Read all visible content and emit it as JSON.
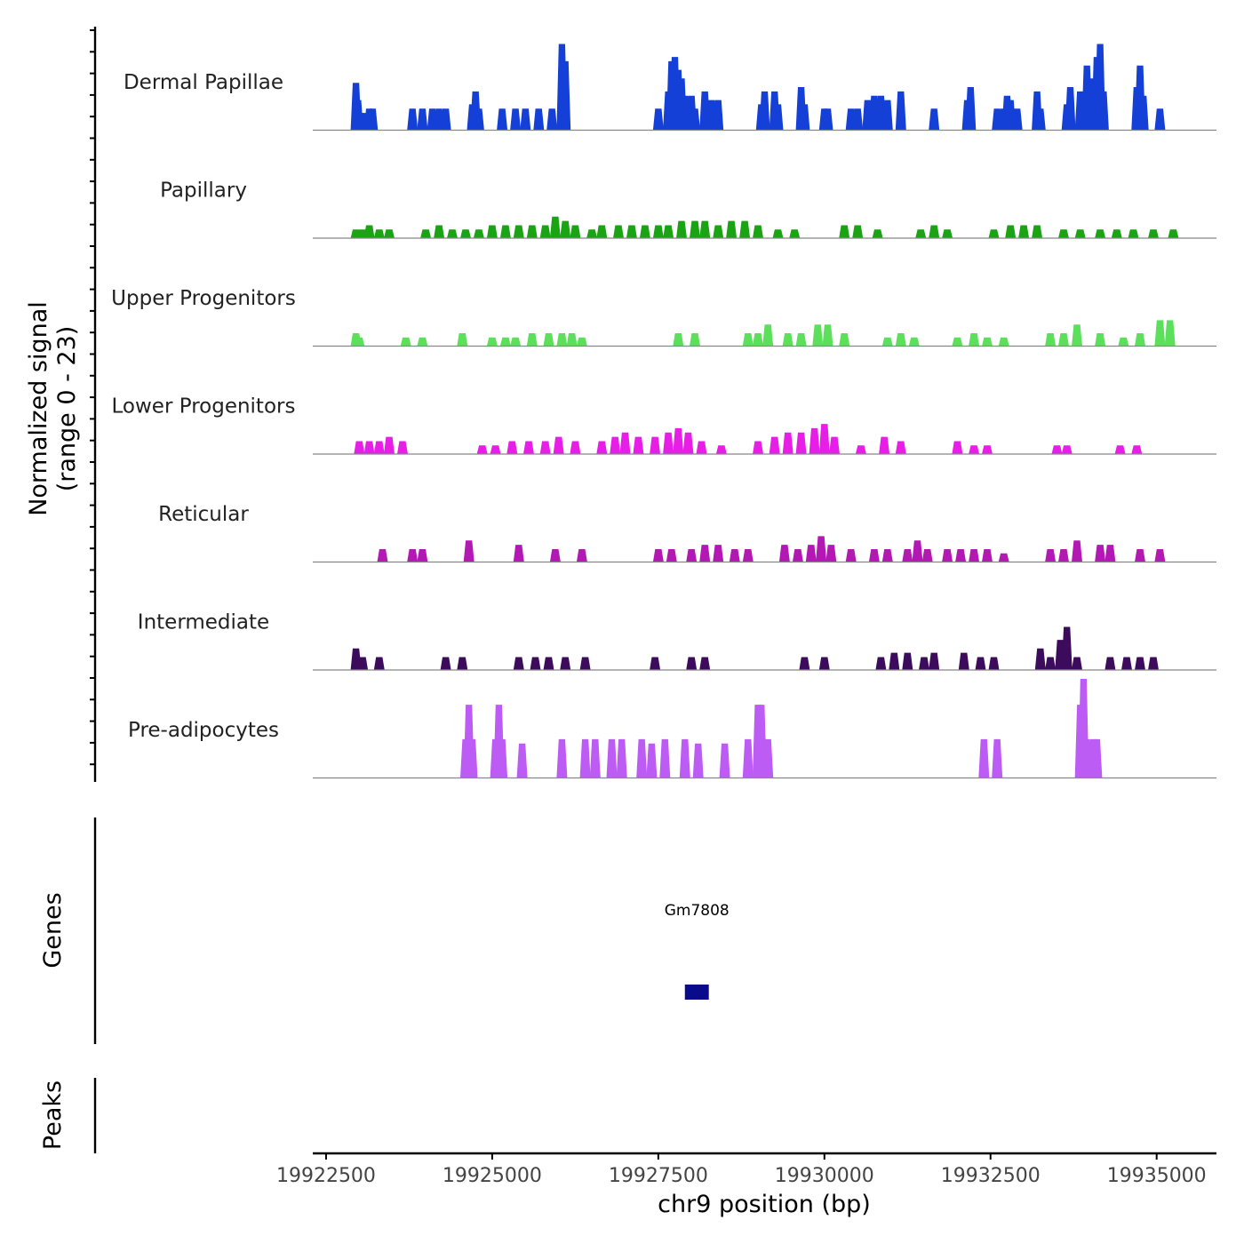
{
  "chart_data": {
    "type": "area",
    "title": "",
    "xlabel": "chr9 position (bp)",
    "ylabel_line1": "Normalized signal",
    "ylabel_line2": "(range 0 - 23)",
    "xlim": [
      19922300,
      19935900
    ],
    "ylim": [
      0,
      23
    ],
    "xticks": [
      19922500,
      19925000,
      19927500,
      19930000,
      19932500,
      19935000
    ],
    "xtick_labels": [
      "19922500",
      "19925000",
      "19927500",
      "19930000",
      "19932500",
      "19935000"
    ],
    "series": [
      {
        "name": "Dermal Papillae",
        "color": "#1540d8",
        "points": [
          [
            19922950,
            11
          ],
          [
            19922980,
            7
          ],
          [
            19923020,
            4
          ],
          [
            19923060,
            4
          ],
          [
            19923150,
            5
          ],
          [
            19923200,
            5
          ],
          [
            19923800,
            5
          ],
          [
            19923950,
            5
          ],
          [
            19924100,
            5
          ],
          [
            19924200,
            5
          ],
          [
            19924300,
            5
          ],
          [
            19924700,
            6
          ],
          [
            19924750,
            9
          ],
          [
            19924800,
            5
          ],
          [
            19925150,
            5
          ],
          [
            19925350,
            5
          ],
          [
            19925500,
            5
          ],
          [
            19925700,
            5
          ],
          [
            19925900,
            5
          ],
          [
            19926050,
            20
          ],
          [
            19926100,
            16
          ],
          [
            19927500,
            5
          ],
          [
            19927650,
            9
          ],
          [
            19927700,
            16
          ],
          [
            19927750,
            17
          ],
          [
            19927800,
            14
          ],
          [
            19927850,
            12
          ],
          [
            19927900,
            8
          ],
          [
            19928000,
            8
          ],
          [
            19928050,
            5
          ],
          [
            19928200,
            9
          ],
          [
            19928300,
            7
          ],
          [
            19928400,
            7
          ],
          [
            19929050,
            6
          ],
          [
            19929100,
            9
          ],
          [
            19929250,
            9
          ],
          [
            19929300,
            6
          ],
          [
            19929650,
            10
          ],
          [
            19929700,
            6
          ],
          [
            19930000,
            5
          ],
          [
            19930050,
            5
          ],
          [
            19930400,
            5
          ],
          [
            19930500,
            5
          ],
          [
            19930650,
            7
          ],
          [
            19930750,
            8
          ],
          [
            19930850,
            8
          ],
          [
            19930950,
            7
          ],
          [
            19931150,
            9
          ],
          [
            19931650,
            5
          ],
          [
            19932150,
            7
          ],
          [
            19932200,
            10
          ],
          [
            19932600,
            5
          ],
          [
            19932700,
            5
          ],
          [
            19932750,
            8
          ],
          [
            19932800,
            7
          ],
          [
            19932900,
            5
          ],
          [
            19933200,
            9
          ],
          [
            19933250,
            5
          ],
          [
            19933650,
            6
          ],
          [
            19933700,
            10
          ],
          [
            19933850,
            9
          ],
          [
            19933950,
            15
          ],
          [
            19934050,
            12
          ],
          [
            19934100,
            17
          ],
          [
            19934150,
            20
          ],
          [
            19934200,
            9
          ],
          [
            19934700,
            10
          ],
          [
            19934750,
            15
          ],
          [
            19934800,
            8
          ],
          [
            19935050,
            5
          ]
        ]
      },
      {
        "name": "Papillary",
        "color": "#1aa312",
        "points": [
          [
            19922950,
            2
          ],
          [
            19923050,
            2
          ],
          [
            19923150,
            3
          ],
          [
            19923300,
            2
          ],
          [
            19923450,
            2
          ],
          [
            19924000,
            2
          ],
          [
            19924200,
            3
          ],
          [
            19924400,
            2
          ],
          [
            19924600,
            2
          ],
          [
            19924800,
            2
          ],
          [
            19925000,
            3
          ],
          [
            19925200,
            3
          ],
          [
            19925400,
            3
          ],
          [
            19925600,
            3
          ],
          [
            19925800,
            3
          ],
          [
            19925950,
            5
          ],
          [
            19926100,
            4
          ],
          [
            19926250,
            3
          ],
          [
            19926500,
            2
          ],
          [
            19926650,
            3
          ],
          [
            19926900,
            3
          ],
          [
            19927100,
            3
          ],
          [
            19927300,
            3
          ],
          [
            19927500,
            3
          ],
          [
            19927650,
            3
          ],
          [
            19927850,
            4
          ],
          [
            19928050,
            4
          ],
          [
            19928200,
            4
          ],
          [
            19928400,
            3
          ],
          [
            19928600,
            4
          ],
          [
            19928800,
            4
          ],
          [
            19929000,
            3
          ],
          [
            19929300,
            2
          ],
          [
            19929550,
            2
          ],
          [
            19930300,
            3
          ],
          [
            19930500,
            3
          ],
          [
            19930800,
            2
          ],
          [
            19931450,
            2
          ],
          [
            19931650,
            3
          ],
          [
            19931850,
            2
          ],
          [
            19932550,
            2
          ],
          [
            19932800,
            3
          ],
          [
            19933000,
            3
          ],
          [
            19933200,
            3
          ],
          [
            19933600,
            2
          ],
          [
            19933850,
            2
          ],
          [
            19934150,
            2
          ],
          [
            19934400,
            2
          ],
          [
            19934650,
            2
          ],
          [
            19934950,
            2
          ],
          [
            19935250,
            2
          ]
        ]
      },
      {
        "name": "Upper Progenitors",
        "color": "#5ce05c",
        "points": [
          [
            19922950,
            3
          ],
          [
            19923000,
            2
          ],
          [
            19923700,
            2
          ],
          [
            19923950,
            2
          ],
          [
            19924550,
            3
          ],
          [
            19925000,
            2
          ],
          [
            19925200,
            2
          ],
          [
            19925350,
            2
          ],
          [
            19925600,
            3
          ],
          [
            19925850,
            3
          ],
          [
            19926050,
            3
          ],
          [
            19926200,
            3
          ],
          [
            19926350,
            2
          ],
          [
            19927800,
            3
          ],
          [
            19928050,
            3
          ],
          [
            19928850,
            3
          ],
          [
            19929000,
            3
          ],
          [
            19929150,
            5
          ],
          [
            19929450,
            3
          ],
          [
            19929650,
            3
          ],
          [
            19929900,
            5
          ],
          [
            19930050,
            5
          ],
          [
            19930300,
            3
          ],
          [
            19930950,
            2
          ],
          [
            19931150,
            3
          ],
          [
            19931350,
            2
          ],
          [
            19932000,
            2
          ],
          [
            19932250,
            3
          ],
          [
            19932450,
            2
          ],
          [
            19932700,
            2
          ],
          [
            19933400,
            3
          ],
          [
            19933600,
            3
          ],
          [
            19933800,
            5
          ],
          [
            19934150,
            3
          ],
          [
            19934500,
            2
          ],
          [
            19934750,
            3
          ],
          [
            19935050,
            6
          ],
          [
            19935200,
            6
          ]
        ]
      },
      {
        "name": "Lower Progenitors",
        "color": "#e61ee6",
        "points": [
          [
            19923000,
            3
          ],
          [
            19923150,
            3
          ],
          [
            19923300,
            3
          ],
          [
            19923450,
            4
          ],
          [
            19923650,
            3
          ],
          [
            19924850,
            2
          ],
          [
            19925050,
            2
          ],
          [
            19925300,
            3
          ],
          [
            19925550,
            3
          ],
          [
            19925800,
            3
          ],
          [
            19926000,
            4
          ],
          [
            19926250,
            3
          ],
          [
            19926650,
            3
          ],
          [
            19926850,
            4
          ],
          [
            19927000,
            5
          ],
          [
            19927200,
            4
          ],
          [
            19927450,
            4
          ],
          [
            19927650,
            5
          ],
          [
            19927800,
            6
          ],
          [
            19927950,
            5
          ],
          [
            19928150,
            3
          ],
          [
            19928450,
            2
          ],
          [
            19929000,
            3
          ],
          [
            19929250,
            4
          ],
          [
            19929450,
            5
          ],
          [
            19929650,
            5
          ],
          [
            19929850,
            6
          ],
          [
            19930000,
            7
          ],
          [
            19930150,
            4
          ],
          [
            19930550,
            2
          ],
          [
            19930900,
            4
          ],
          [
            19931150,
            3
          ],
          [
            19932000,
            3
          ],
          [
            19932250,
            2
          ],
          [
            19932450,
            2
          ],
          [
            19933500,
            2
          ],
          [
            19933650,
            2
          ],
          [
            19934450,
            2
          ],
          [
            19934700,
            2
          ]
        ]
      },
      {
        "name": "Reticular",
        "color": "#b418b4",
        "points": [
          [
            19923350,
            3
          ],
          [
            19923800,
            3
          ],
          [
            19923950,
            3
          ],
          [
            19924650,
            5
          ],
          [
            19925400,
            4
          ],
          [
            19925950,
            3
          ],
          [
            19926350,
            3
          ],
          [
            19927500,
            3
          ],
          [
            19927700,
            3
          ],
          [
            19928000,
            3
          ],
          [
            19928200,
            4
          ],
          [
            19928400,
            4
          ],
          [
            19928650,
            3
          ],
          [
            19928850,
            3
          ],
          [
            19929400,
            4
          ],
          [
            19929600,
            3
          ],
          [
            19929800,
            4
          ],
          [
            19929950,
            6
          ],
          [
            19930100,
            4
          ],
          [
            19930400,
            3
          ],
          [
            19930750,
            3
          ],
          [
            19930950,
            3
          ],
          [
            19931250,
            3
          ],
          [
            19931400,
            5
          ],
          [
            19931550,
            3
          ],
          [
            19931850,
            3
          ],
          [
            19932050,
            3
          ],
          [
            19932250,
            3
          ],
          [
            19932450,
            3
          ],
          [
            19932700,
            2
          ],
          [
            19933400,
            3
          ],
          [
            19933600,
            3
          ],
          [
            19933800,
            5
          ],
          [
            19934150,
            4
          ],
          [
            19934300,
            4
          ],
          [
            19934750,
            3
          ],
          [
            19935050,
            3
          ]
        ]
      },
      {
        "name": "Intermediate",
        "color": "#3d0b5c",
        "points": [
          [
            19922950,
            5
          ],
          [
            19923050,
            3
          ],
          [
            19923300,
            3
          ],
          [
            19924300,
            3
          ],
          [
            19924550,
            3
          ],
          [
            19925400,
            3
          ],
          [
            19925650,
            3
          ],
          [
            19925850,
            3
          ],
          [
            19926100,
            3
          ],
          [
            19926400,
            3
          ],
          [
            19927450,
            3
          ],
          [
            19928000,
            3
          ],
          [
            19928200,
            3
          ],
          [
            19929700,
            3
          ],
          [
            19930000,
            3
          ],
          [
            19930850,
            3
          ],
          [
            19931050,
            4
          ],
          [
            19931250,
            4
          ],
          [
            19931500,
            3
          ],
          [
            19931650,
            4
          ],
          [
            19932100,
            4
          ],
          [
            19932350,
            3
          ],
          [
            19932550,
            3
          ],
          [
            19933250,
            5
          ],
          [
            19933400,
            3
          ],
          [
            19933550,
            7
          ],
          [
            19933650,
            10
          ],
          [
            19933800,
            3
          ],
          [
            19934300,
            3
          ],
          [
            19934550,
            3
          ],
          [
            19934750,
            3
          ],
          [
            19934950,
            3
          ]
        ]
      },
      {
        "name": "Pre-adipocytes",
        "color": "#bd5cf5",
        "points": [
          [
            19924600,
            9
          ],
          [
            19924650,
            17
          ],
          [
            19924700,
            9
          ],
          [
            19925050,
            9
          ],
          [
            19925100,
            17
          ],
          [
            19925150,
            9
          ],
          [
            19925450,
            8
          ],
          [
            19926050,
            9
          ],
          [
            19926400,
            9
          ],
          [
            19926550,
            9
          ],
          [
            19926800,
            9
          ],
          [
            19926950,
            9
          ],
          [
            19927250,
            9
          ],
          [
            19927400,
            8
          ],
          [
            19927600,
            9
          ],
          [
            19927900,
            9
          ],
          [
            19928100,
            8
          ],
          [
            19928500,
            8
          ],
          [
            19928850,
            9
          ],
          [
            19929000,
            17
          ],
          [
            19929050,
            17
          ],
          [
            19929150,
            9
          ],
          [
            19932400,
            9
          ],
          [
            19932600,
            9
          ],
          [
            19933850,
            17
          ],
          [
            19933900,
            23
          ],
          [
            19933950,
            9
          ],
          [
            19934050,
            9
          ],
          [
            19934100,
            9
          ]
        ]
      }
    ],
    "genes": [
      {
        "name": "Gm7808",
        "start": 19927900,
        "end": 19928260,
        "color": "#0a0a8c"
      }
    ],
    "genes_label": "Genes",
    "peaks_label": "Peaks"
  }
}
